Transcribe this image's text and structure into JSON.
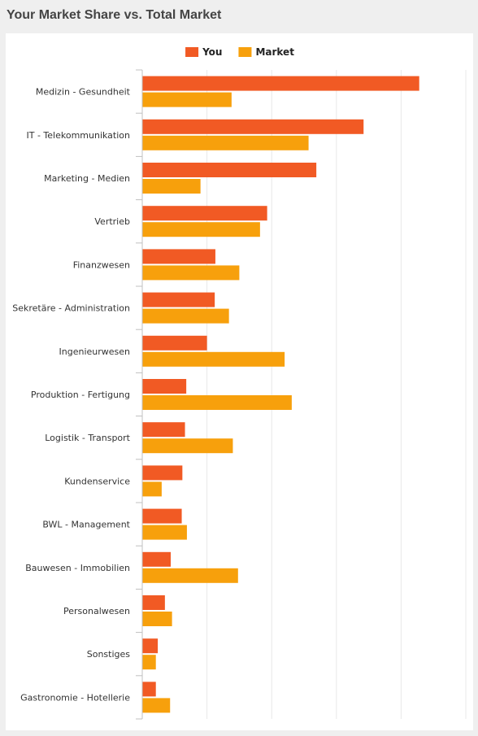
{
  "widget": {
    "title": "Your Market Share vs. Total Market"
  },
  "colors": {
    "you": "#f15a24",
    "market": "#f7a00c",
    "grid": "#e8e8e8",
    "axis": "#c0c0c0"
  },
  "chart_data": {
    "type": "bar",
    "orientation": "horizontal",
    "grid": true,
    "legend_position": "top-center",
    "xlim": [
      0,
      50
    ],
    "categories": [
      "Medizin - Gesundheit",
      "IT - Telekommunikation",
      "Marketing - Medien",
      "Vertrieb",
      "Finanzwesen",
      "Sekretäre - Administration",
      "Ingenieurwesen",
      "Produktion - Fertigung",
      "Logistik - Transport",
      "Kundenservice",
      "BWL - Management",
      "Bauwesen - Immobilien",
      "Personalwesen",
      "Sonstiges",
      "Gastronomie - Hotellerie"
    ],
    "series": [
      {
        "name": "You",
        "values": [
          42.8,
          34.2,
          26.9,
          19.3,
          11.3,
          11.2,
          10.0,
          6.8,
          6.6,
          6.2,
          6.1,
          4.4,
          3.5,
          2.4,
          2.1
        ]
      },
      {
        "name": "Market",
        "values": [
          13.8,
          25.7,
          9.0,
          18.2,
          15.0,
          13.4,
          22.0,
          23.1,
          14.0,
          3.0,
          6.9,
          14.8,
          4.6,
          2.1,
          4.3
        ]
      }
    ]
  }
}
